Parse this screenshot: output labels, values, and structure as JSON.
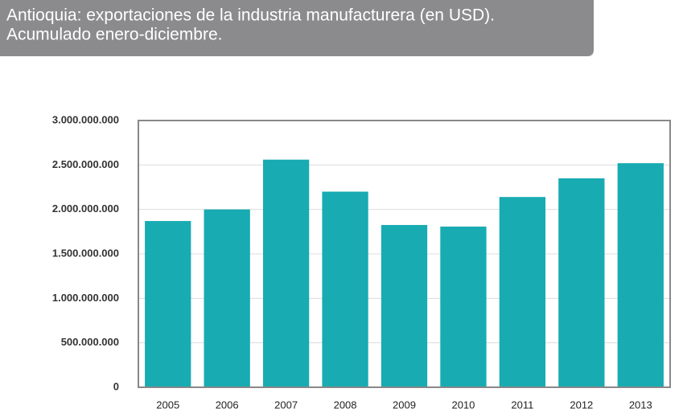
{
  "chart_data": {
    "type": "bar",
    "title": "Antioquia: exportaciones de la industria manufacturera (en USD).",
    "subtitle": "Acumulado enero-diciembre.",
    "categories": [
      "2005",
      "2006",
      "2007",
      "2008",
      "2009",
      "2010",
      "2011",
      "2012",
      "2013"
    ],
    "values": [
      1870000000,
      2000000000,
      2560000000,
      2200000000,
      1825000000,
      1807000000,
      2140000000,
      2350000000,
      2520000000
    ],
    "color": "#18abb2",
    "ylim": [
      0,
      3000000000
    ],
    "yticks": [
      0,
      {
        "value": 500000000,
        "label": "500.000.000"
      },
      {
        "value": 1000000000,
        "label": "1.000.000.000"
      },
      {
        "value": 1500000000,
        "label": "1.500.000.000"
      },
      {
        "value": 2000000000,
        "label": "2.000.000.000"
      },
      {
        "value": 2500000000,
        "label": "2.500.000.000"
      },
      {
        "value": 3000000000,
        "label": "3.000.000.000"
      }
    ],
    "grid": true
  }
}
